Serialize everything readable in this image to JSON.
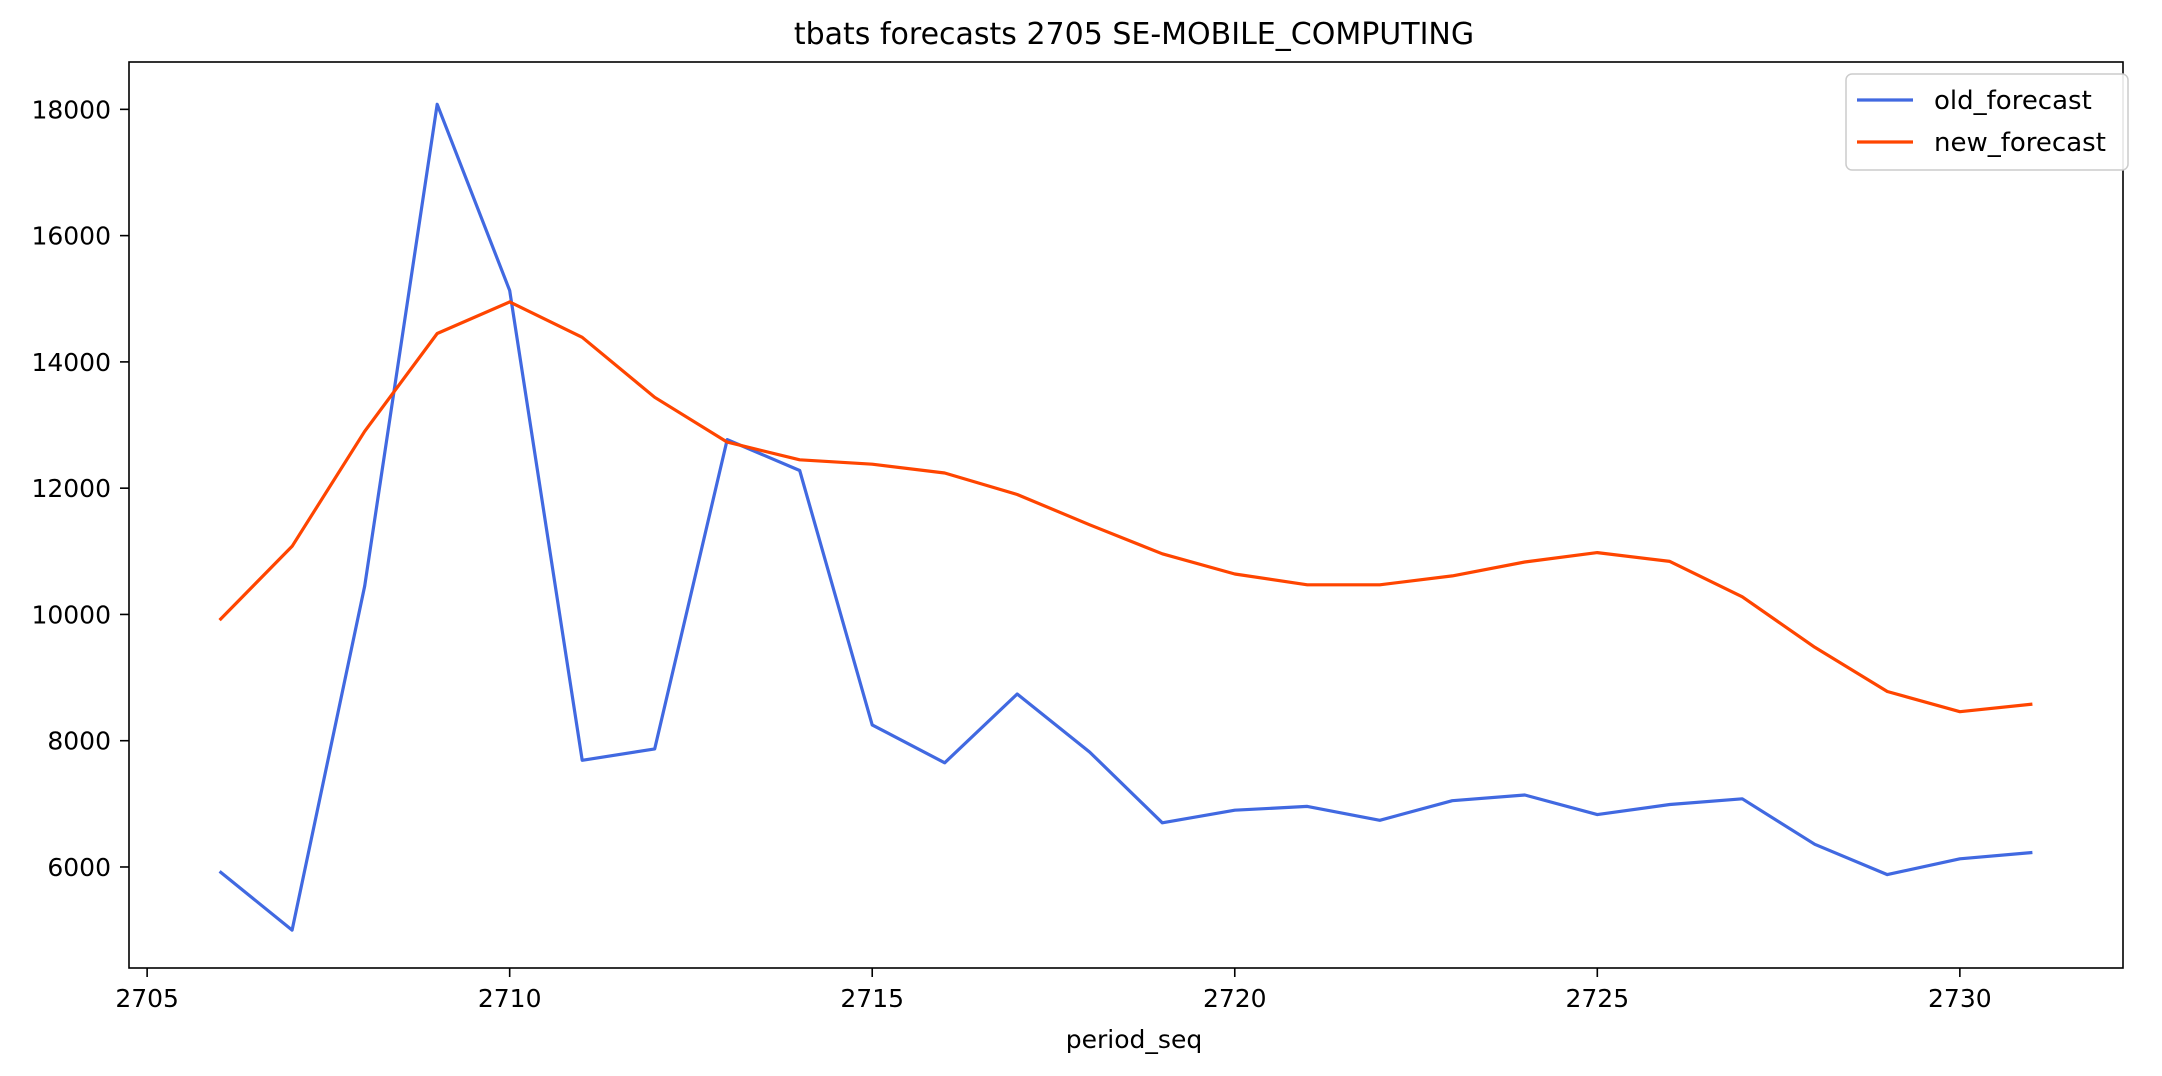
{
  "chart_data": {
    "type": "line",
    "title": "tbats forecasts 2705 SE-MOBILE_COMPUTING",
    "xlabel": "period_seq",
    "ylabel": "",
    "xlim": [
      2704.75,
      2732.25
    ],
    "ylim": [
      4400,
      18750
    ],
    "xticks": [
      2705,
      2710,
      2715,
      2720,
      2725,
      2730
    ],
    "yticks": [
      6000,
      8000,
      10000,
      12000,
      14000,
      16000,
      18000
    ],
    "grid": false,
    "legend_position": "top-right",
    "x": [
      2706,
      2707,
      2708,
      2709,
      2710,
      2711,
      2712,
      2713,
      2714,
      2715,
      2716,
      2717,
      2718,
      2719,
      2720,
      2721,
      2722,
      2723,
      2724,
      2725,
      2726,
      2727,
      2728,
      2729,
      2730,
      2731
    ],
    "series": [
      {
        "name": "old_forecast",
        "color": "#4169E1",
        "values": [
          5930,
          5000,
          10450,
          18080,
          15130,
          7690,
          7870,
          12770,
          12280,
          8250,
          7650,
          8740,
          7820,
          6700,
          6900,
          6960,
          6740,
          7050,
          7140,
          6830,
          6990,
          7080,
          6360,
          5880,
          6130,
          6230
        ]
      },
      {
        "name": "new_forecast",
        "color": "#FF4500",
        "values": [
          9910,
          11080,
          12900,
          14450,
          14950,
          14390,
          13440,
          12730,
          12450,
          12380,
          12240,
          11900,
          11420,
          10960,
          10640,
          10470,
          10470,
          10610,
          10830,
          10980,
          10840,
          10280,
          9480,
          8780,
          8460,
          8580
        ]
      }
    ]
  }
}
